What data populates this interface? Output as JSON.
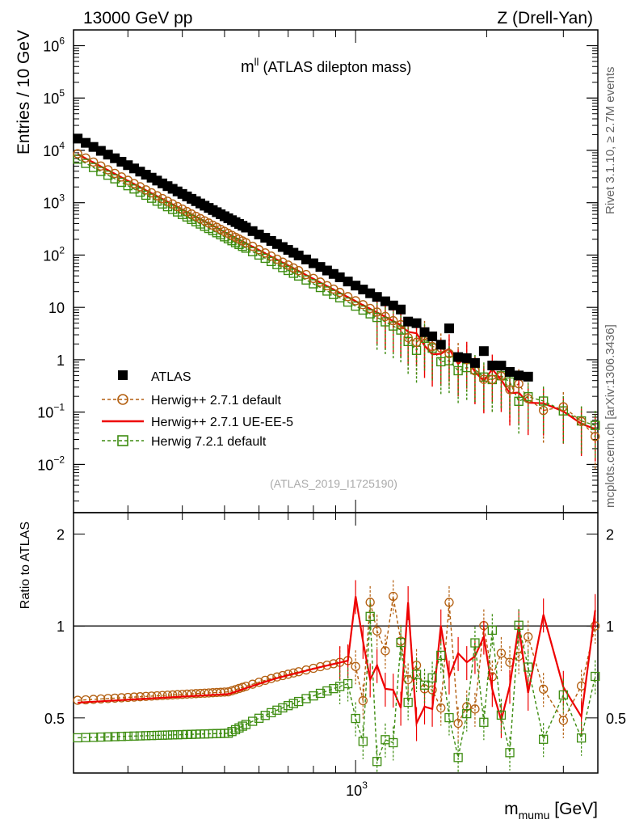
{
  "header": {
    "energy": "13000 GeV pp",
    "process": "Z (Drell-Yan)",
    "rivet": "Rivet 3.1.10, ≥ 2.7M events",
    "mcplots": "mcplots.cern.ch [arXiv:1306.3436]",
    "analysis": "(ATLAS_2019_I1725190)"
  },
  "plot_title": {
    "main": "m",
    "sup": "ll",
    "rest": " (ATLAS dilepton mass)"
  },
  "colors": {
    "data": "#000000",
    "h271def": "#b35f10",
    "h271ue": "#ee0000",
    "h721": "#3d8c10"
  },
  "legend": [
    {
      "label": "ATLAS",
      "key": "data"
    },
    {
      "label": "Herwig++ 2.7.1 default",
      "key": "h271def"
    },
    {
      "label": "Herwig++ 2.7.1 UE-EE-5",
      "key": "h271ue"
    },
    {
      "label": "Herwig 7.2.1 default",
      "key": "h721"
    }
  ],
  "chart_data": [
    {
      "type": "scatter",
      "panel": "main",
      "title": "m^ll (ATLAS dilepton mass)",
      "ylabel": "Entries / 10 GeV",
      "yscale": "log",
      "xscale": "log",
      "xlim": [
        225,
        3600
      ],
      "ylim": [
        0.0012,
        2000000
      ],
      "yticks": [
        {
          "v": 1000000,
          "base": "10",
          "exp": "6"
        },
        {
          "v": 100000,
          "base": "10",
          "exp": "5"
        },
        {
          "v": 10000,
          "base": "10",
          "exp": "4"
        },
        {
          "v": 1000,
          "base": "10",
          "exp": "3"
        },
        {
          "v": 100,
          "base": "10",
          "exp": "2"
        },
        {
          "v": 10,
          "base": "10",
          "exp": ""
        },
        {
          "v": 1,
          "base": "1",
          "exp": ""
        },
        {
          "v": 0.1,
          "base": "10",
          "exp": "−1"
        },
        {
          "v": 0.01,
          "base": "10",
          "exp": "−2"
        }
      ],
      "data_model": {
        "start": 225,
        "end": 3600,
        "slope": -4.4,
        "atlas_norm": 18500,
        "h271_norm": 9500,
        "h721_norm": 7500
      },
      "legend_position": "left-middle"
    },
    {
      "type": "line",
      "panel": "ratio",
      "ylabel": "Ratio to ATLAS",
      "xlabel_main": "m",
      "xlabel_sub": "mumu",
      "xlabel_unit": " [GeV]",
      "ylim": [
        0.33,
        2.35
      ],
      "yticks": [
        {
          "v": 0.5,
          "label": "0.5"
        },
        {
          "v": 1,
          "label": "1"
        },
        {
          "v": 2,
          "label": "2"
        }
      ],
      "xtick_label": {
        "v": 1000,
        "base": "10",
        "exp": "3"
      },
      "series": [
        {
          "name": "Herwig++ 2.7.1 default",
          "key": "h271def",
          "low": 0.57,
          "mid": 0.62,
          "high": 0.78
        },
        {
          "name": "Herwig++ 2.7.1 UE-EE-5",
          "key": "h271ue",
          "low": 0.56,
          "mid": 0.61,
          "high": 0.78
        },
        {
          "name": "Herwig 7.2.1 default",
          "key": "h721",
          "low": 0.43,
          "mid": 0.45,
          "high": 0.66
        }
      ]
    }
  ]
}
